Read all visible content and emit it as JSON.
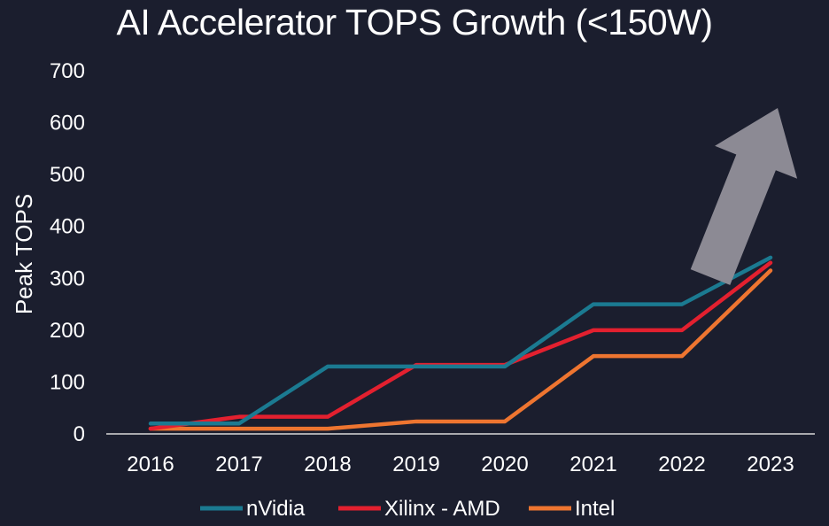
{
  "chart_data": {
    "type": "line",
    "title": "AI Accelerator TOPS Growth (<150W)",
    "xlabel": "",
    "ylabel": "Peak TOPS",
    "categories": [
      "2016",
      "2017",
      "2018",
      "2019",
      "2020",
      "2021",
      "2022",
      "2023"
    ],
    "ylim": [
      0,
      700
    ],
    "yticks": [
      "0",
      "100",
      "200",
      "300",
      "400",
      "500",
      "600",
      "700"
    ],
    "grid": false,
    "legend_position": "bottom",
    "series": [
      {
        "name": "nVidia",
        "color": "#1b7a91",
        "values": [
          20,
          20,
          130,
          130,
          130,
          250,
          250,
          340
        ]
      },
      {
        "name": "Xilinx - AMD",
        "color": "#e3202f",
        "values": [
          10,
          33,
          33,
          133,
          133,
          200,
          200,
          330
        ]
      },
      {
        "name": "Intel",
        "color": "#ee7530",
        "values": [
          10,
          10,
          10,
          24,
          24,
          150,
          150,
          315
        ]
      }
    ],
    "annotation": {
      "type": "arrow",
      "meaning": "upward growth trend",
      "color": "#8c8a94"
    }
  }
}
